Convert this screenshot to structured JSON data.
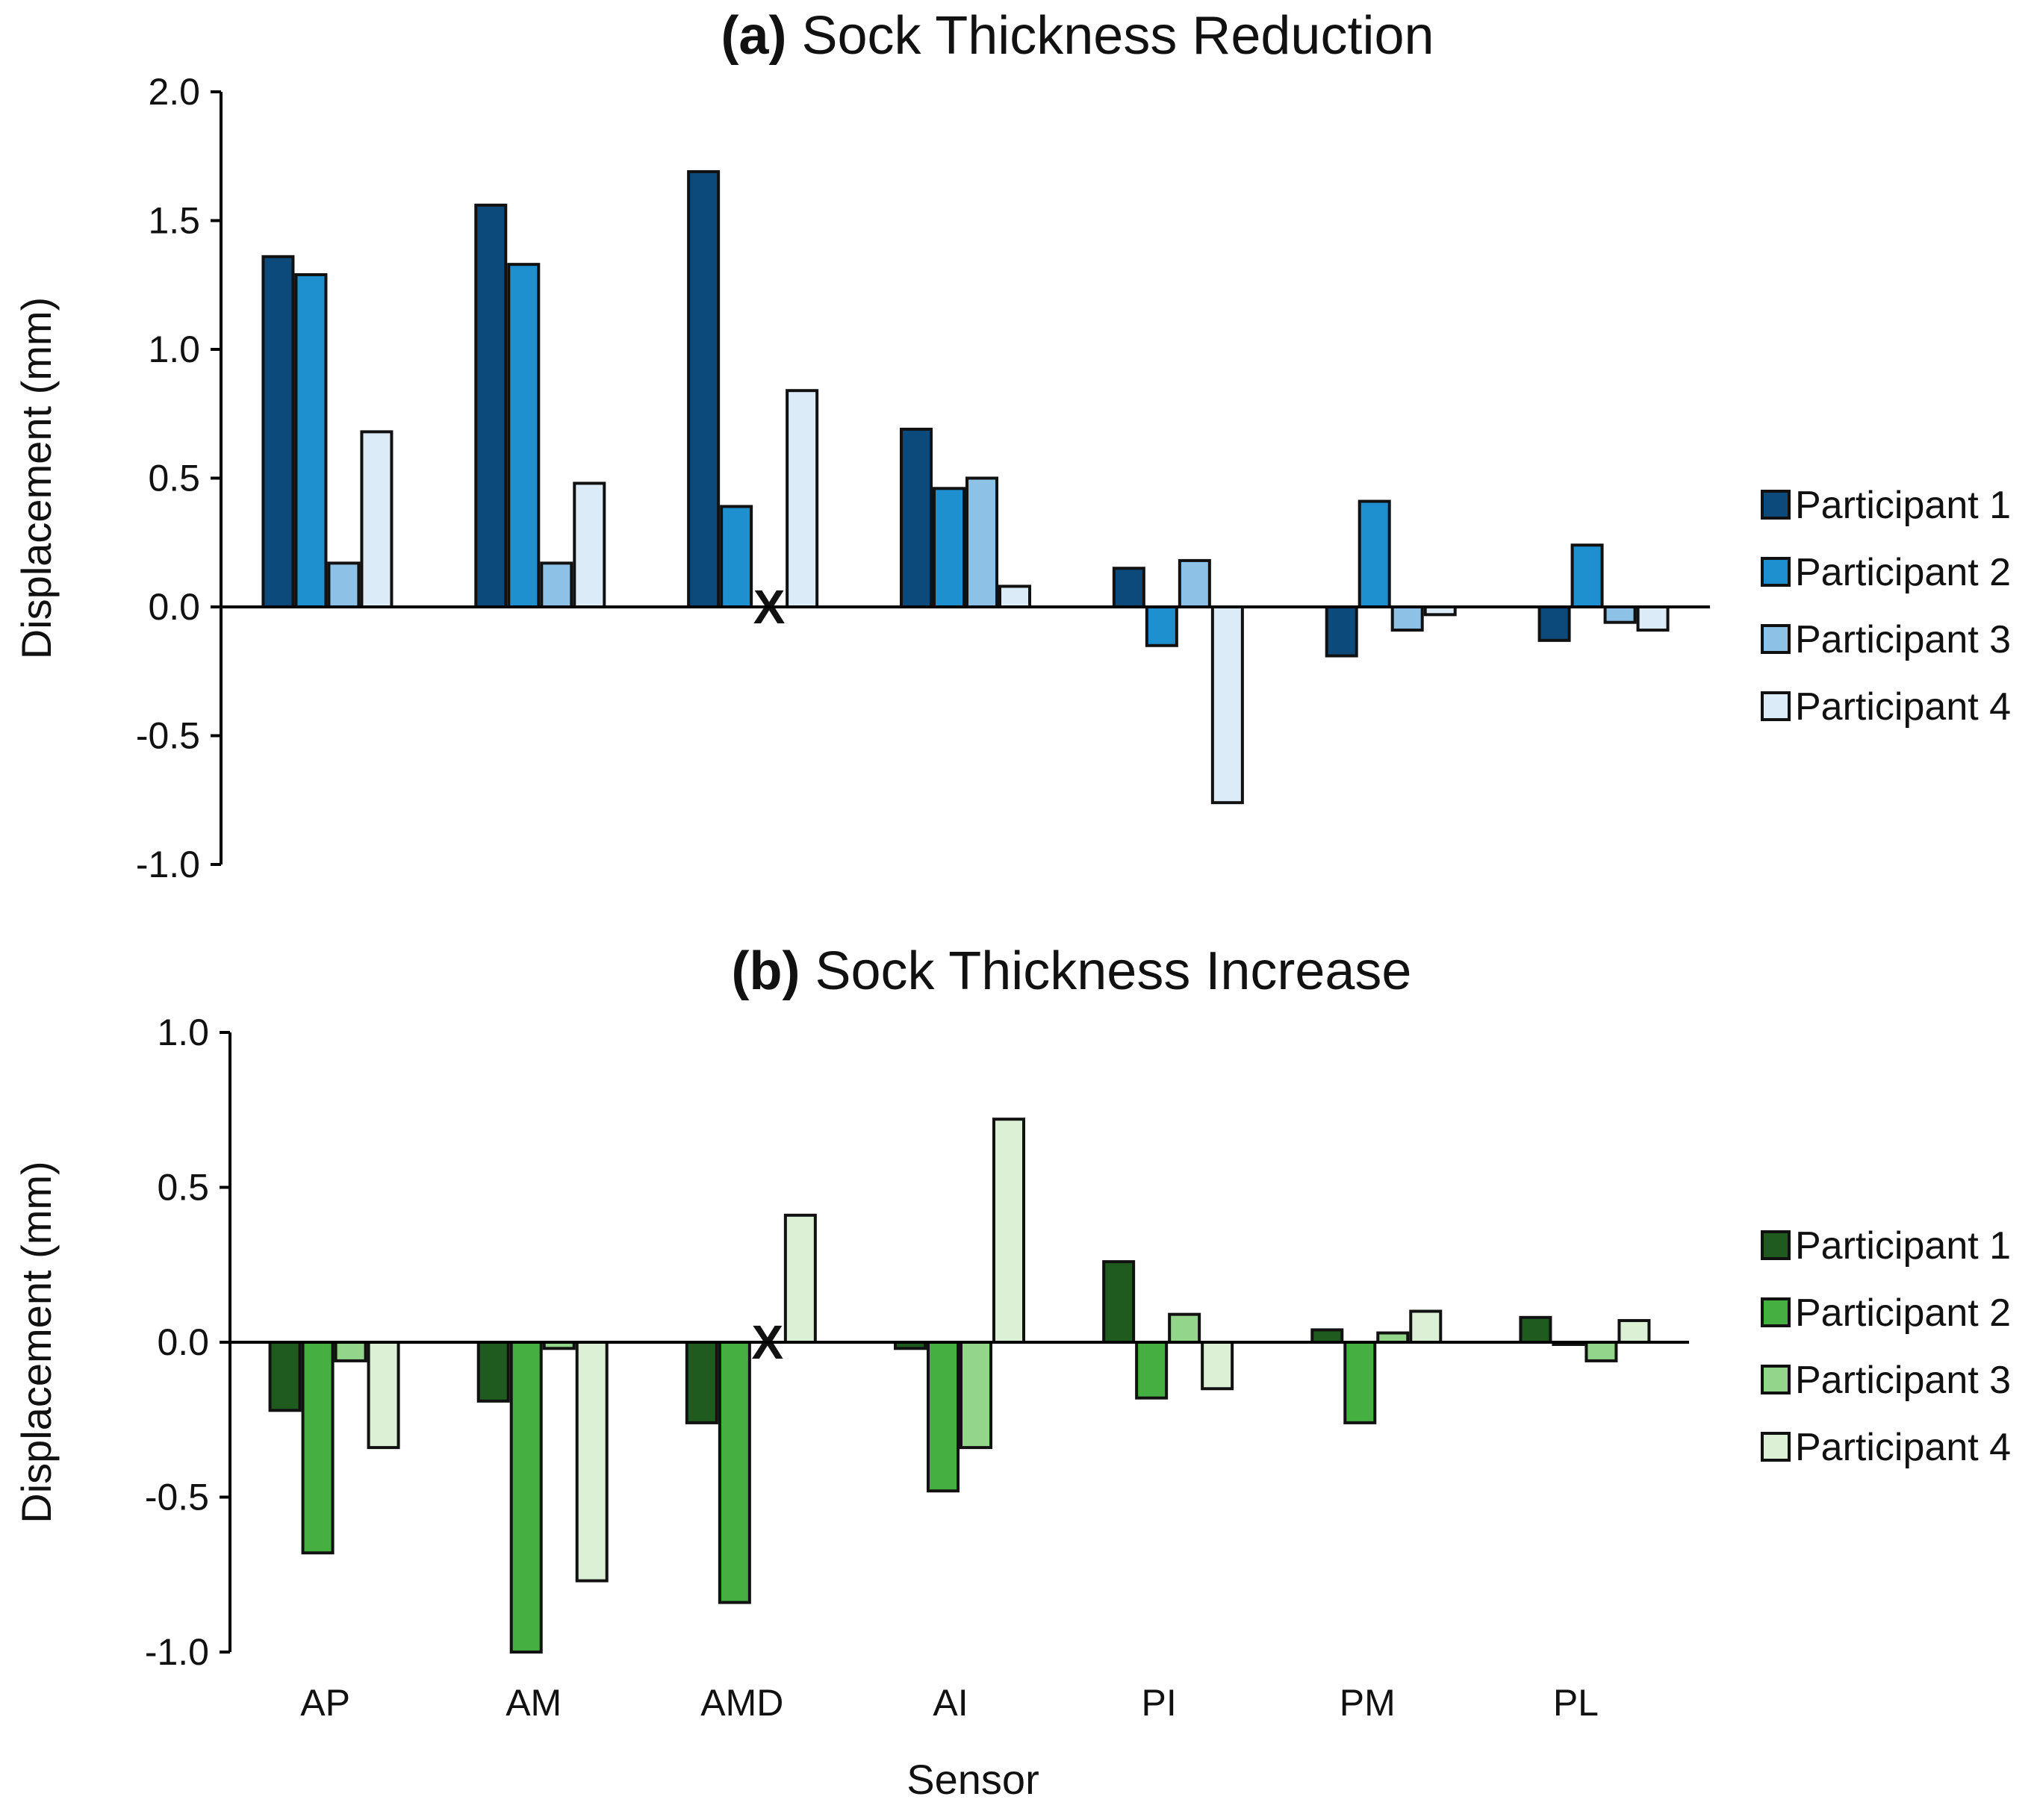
{
  "chart_data": [
    {
      "type": "bar",
      "panel_label": "(a)",
      "title": "Sock Thickness Reduction",
      "xlabel": "",
      "ylabel": "Displacement (mm)",
      "ylim": [
        -1.0,
        2.0
      ],
      "yticks": [
        "2.0",
        "1.5",
        "1.0",
        "0.5",
        "0.0",
        "-0.5",
        "-1.0"
      ],
      "ytick_values": [
        2.0,
        1.5,
        1.0,
        0.5,
        0.0,
        -0.5,
        -1.0
      ],
      "categories": [
        "AP",
        "AM",
        "AMD",
        "AI",
        "PI",
        "PM",
        "PL"
      ],
      "legend_position": "right",
      "missing_marker": "X",
      "series": [
        {
          "name": "Participant 1",
          "color": "#0b4a7a",
          "values": [
            1.36,
            1.56,
            1.69,
            0.69,
            0.15,
            -0.19,
            -0.13
          ]
        },
        {
          "name": "Participant 2",
          "color": "#1e90d0",
          "values": [
            1.29,
            1.33,
            0.39,
            0.46,
            -0.15,
            0.41,
            0.24
          ]
        },
        {
          "name": "Participant 3",
          "color": "#8ec1e6",
          "values": [
            0.17,
            0.17,
            null,
            0.5,
            0.18,
            -0.09,
            -0.06
          ]
        },
        {
          "name": "Participant 4",
          "color": "#dcebf8",
          "values": [
            0.68,
            0.48,
            0.84,
            0.08,
            -0.76,
            -0.03,
            -0.09
          ]
        }
      ]
    },
    {
      "type": "bar",
      "panel_label": "(b)",
      "title": "Sock Thickness Increase",
      "xlabel": "Sensor",
      "ylabel": "Displacement (mm)",
      "ylim": [
        -1.0,
        1.0
      ],
      "yticks": [
        "1.0",
        "0.5",
        "0.0",
        "-0.5",
        "-1.0"
      ],
      "ytick_values": [
        1.0,
        0.5,
        0.0,
        -0.5,
        -1.0
      ],
      "categories": [
        "AP",
        "AM",
        "AMD",
        "AI",
        "PI",
        "PM",
        "PL"
      ],
      "legend_position": "right",
      "missing_marker": "X",
      "series": [
        {
          "name": "Participant 1",
          "color": "#1f5a1f",
          "values": [
            -0.22,
            -0.19,
            -0.26,
            -0.02,
            0.26,
            0.04,
            0.08
          ]
        },
        {
          "name": "Participant 2",
          "color": "#45b041",
          "values": [
            -0.68,
            -1.0,
            -0.84,
            -0.48,
            -0.18,
            -0.26,
            0.0
          ]
        },
        {
          "name": "Participant 3",
          "color": "#94d58c",
          "values": [
            -0.06,
            -0.02,
            null,
            -0.34,
            0.09,
            0.03,
            -0.06
          ]
        },
        {
          "name": "Participant 4",
          "color": "#dcf0d6",
          "values": [
            -0.34,
            -0.77,
            0.41,
            0.72,
            -0.15,
            0.1,
            0.07
          ]
        }
      ]
    }
  ]
}
